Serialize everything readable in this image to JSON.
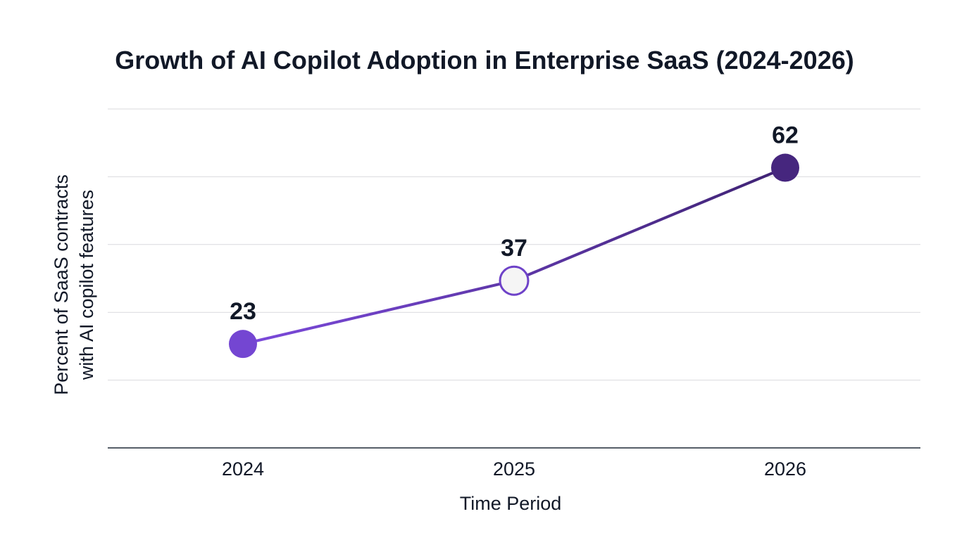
{
  "chart_data": {
    "type": "line",
    "title": "Growth of AI Copilot Adoption in Enterprise SaaS (2024-2026)",
    "xlabel": "Time Period",
    "ylabel_lines": [
      "Percent of SaaS contracts",
      "with AI copilot features"
    ],
    "categories": [
      "2024",
      "2025",
      "2026"
    ],
    "series": [
      {
        "values": [
          23,
          37,
          62
        ],
        "labels": [
          "23",
          "37",
          "62"
        ],
        "point_styles": [
          "filled",
          "hollow",
          "filled"
        ],
        "point_colors": [
          "#7446D2",
          "#F5F5F5",
          "#46267E"
        ],
        "point_stroke": "#6E42C8",
        "line_gradient": [
          "#7C4ADC",
          "#3F2373"
        ]
      }
    ],
    "ylim": [
      0,
      75
    ],
    "gridlines": [
      15,
      30,
      45,
      60,
      75
    ],
    "grid": true,
    "legend": "none",
    "colors": {
      "text": "#111827",
      "grid": "#D9D9DE",
      "axis": "#1F2937"
    }
  }
}
